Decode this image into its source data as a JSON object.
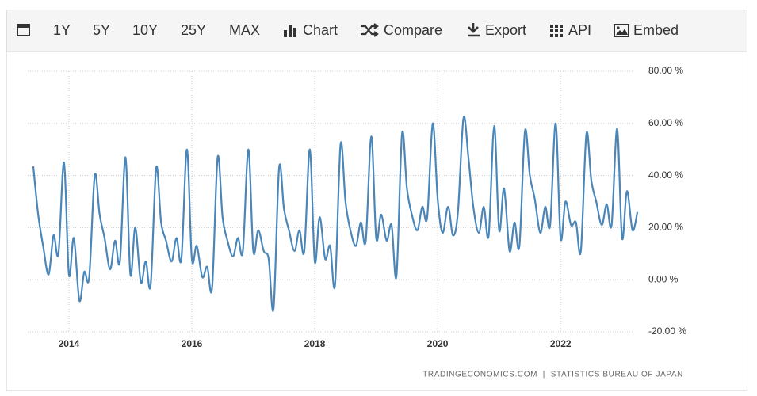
{
  "toolbar": {
    "items": [
      "1Y",
      "5Y",
      "10Y",
      "25Y",
      "MAX",
      "Chart",
      "Compare",
      "Export",
      "API",
      "Embed"
    ]
  },
  "chart_data": {
    "type": "line",
    "source": "TRADINGECONOMICS.COM  |  STATISTICS BUREAU OF JAPAN",
    "series": [
      {
        "name": null,
        "color": "#4a86b8",
        "x": [
          2013.42,
          2013.5,
          2013.58,
          2013.67,
          2013.75,
          2013.83,
          2013.92,
          2014,
          2014.08,
          2014.17,
          2014.25,
          2014.33,
          2014.42,
          2014.5,
          2014.58,
          2014.67,
          2014.75,
          2014.83,
          2014.92,
          2015,
          2015.08,
          2015.17,
          2015.25,
          2015.33,
          2015.42,
          2015.5,
          2015.58,
          2015.67,
          2015.75,
          2015.83,
          2015.92,
          2016,
          2016.08,
          2016.17,
          2016.25,
          2016.33,
          2016.42,
          2016.5,
          2016.58,
          2016.67,
          2016.75,
          2016.83,
          2016.92,
          2017,
          2017.08,
          2017.17,
          2017.25,
          2017.33,
          2017.42,
          2017.5,
          2017.58,
          2017.67,
          2017.75,
          2017.83,
          2017.92,
          2018,
          2018.08,
          2018.17,
          2018.25,
          2018.33,
          2018.42,
          2018.5,
          2018.58,
          2018.67,
          2018.75,
          2018.83,
          2018.92,
          2019,
          2019.08,
          2019.17,
          2019.25,
          2019.33,
          2019.42,
          2019.5,
          2019.58,
          2019.67,
          2019.75,
          2019.83,
          2019.92,
          2020,
          2020.08,
          2020.17,
          2020.25,
          2020.33,
          2020.42,
          2020.5,
          2020.58,
          2020.67,
          2020.75,
          2020.83,
          2020.92,
          2021,
          2021.08,
          2021.17,
          2021.25,
          2021.33,
          2021.42,
          2021.5,
          2021.58,
          2021.67,
          2021.75,
          2021.83,
          2021.92,
          2022,
          2022.08,
          2022.17,
          2022.25,
          2022.33,
          2022.42,
          2022.5,
          2022.58,
          2022.67,
          2022.75,
          2022.83,
          2022.92,
          2023,
          2023.08,
          2023.17,
          2023.25
        ],
        "values": [
          43.5,
          25,
          13,
          2,
          17,
          10,
          45,
          2,
          16,
          -8,
          3,
          1,
          40,
          25,
          16,
          4,
          15,
          7,
          47,
          2,
          20,
          -1,
          7,
          -2,
          43,
          22,
          15,
          7,
          16,
          8,
          50,
          8,
          13,
          1,
          5,
          -3,
          47,
          24,
          15,
          9,
          16,
          11,
          50,
          11,
          19,
          11,
          8,
          -11,
          43,
          27,
          19,
          11,
          19,
          11,
          50,
          7,
          24,
          8,
          13,
          -2,
          52,
          30,
          19,
          13,
          22,
          15,
          55,
          16,
          25,
          15,
          21,
          1.5,
          56,
          35,
          25,
          19,
          28,
          24,
          60,
          31,
          18,
          28,
          17,
          26,
          62,
          47,
          28,
          18,
          28,
          17,
          59,
          19,
          35,
          11,
          22,
          13,
          57,
          40,
          31,
          18,
          28,
          21,
          60,
          16,
          30,
          21,
          22,
          11,
          56,
          38,
          30,
          21,
          29,
          21,
          58,
          16,
          34,
          19,
          26
        ]
      }
    ],
    "xlim": [
      2013.33,
      2023.3
    ],
    "xticks": [
      2014,
      2016,
      2018,
      2020,
      2022
    ],
    "ylim": [
      -20,
      80
    ],
    "yticks": [
      {
        "value": -20,
        "label": "-20.00 %"
      },
      {
        "value": 0,
        "label": "0.00 %"
      },
      {
        "value": 20,
        "label": "20.00 %"
      },
      {
        "value": 40,
        "label": "40.00 %"
      },
      {
        "value": 60,
        "label": "60.00 %"
      },
      {
        "value": 80,
        "label": "80.00 %"
      }
    ],
    "grid": true
  }
}
